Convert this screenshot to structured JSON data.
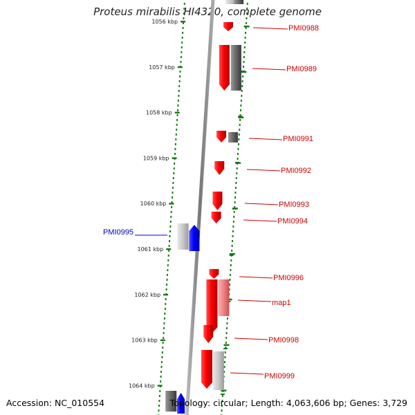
{
  "title": "Proteus mirabilis HI4320, complete genome",
  "accession": "Accession: NC_010554",
  "stats": "Topology: circular; Length: 4,063,606 bp; Genes: 3,729",
  "colors": {
    "forward": "#ff0000",
    "reverse": "#0000ff",
    "dark_gray": "#6b6b6b",
    "light_gray": "#c8c8c8",
    "pink": "#f08080",
    "tick": "#1a7a1a",
    "label_fwd": "#cc0000",
    "label_rev": "#0000cc",
    "backbone": "#888888"
  },
  "scale": {
    "unit": "kbp",
    "labels": [
      "1056 kbp",
      "1057 kbp",
      "1058 kbp",
      "1059 kbp",
      "1060 kbp",
      "1061 kbp",
      "1062 kbp",
      "1063 kbp",
      "1064 kbp"
    ]
  },
  "gene_labels": [
    {
      "text": "PMI0988",
      "strand": "forward"
    },
    {
      "text": "PMI0989",
      "strand": "forward"
    },
    {
      "text": "PMI0991",
      "strand": "forward"
    },
    {
      "text": "PMI0992",
      "strand": "forward"
    },
    {
      "text": "PMI0993",
      "strand": "forward"
    },
    {
      "text": "PMI0994",
      "strand": "forward"
    },
    {
      "text": "PMI0995",
      "strand": "reverse"
    },
    {
      "text": "PMI0996",
      "strand": "forward"
    },
    {
      "text": "map1",
      "strand": "forward"
    },
    {
      "text": "PMI0998",
      "strand": "forward"
    },
    {
      "text": "PMI0999",
      "strand": "forward"
    }
  ]
}
